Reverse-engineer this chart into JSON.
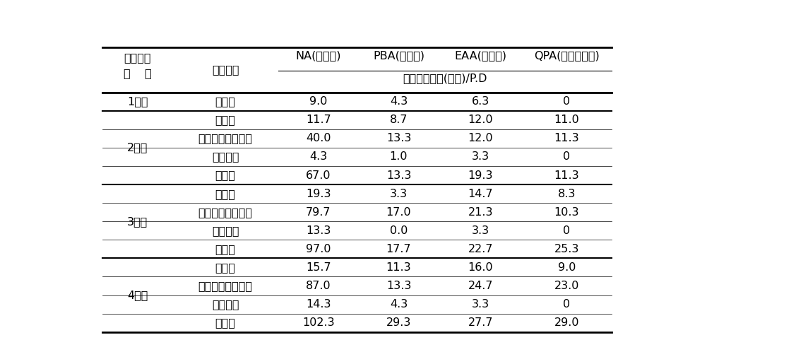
{
  "rows": [
    {
      "year": "1년차",
      "treatments": [
        {
          "method": "무처리",
          "NA": "9.0",
          "PBA": "4.3",
          "EAA": "6.3",
          "QPA": "0"
        }
      ]
    },
    {
      "year": "2년차",
      "treatments": [
        {
          "method": "페로산",
          "NA": "11.7",
          "PBA": "8.7",
          "EAA": "12.0",
          "QPA": "11.0"
        },
        {
          "method": "차아염소산나트륨",
          "NA": "40.0",
          "PBA": "13.3",
          "EAA": "12.0",
          "QPA": "11.3"
        },
        {
          "method": "밧사미드",
          "NA": "4.3",
          "PBA": "1.0",
          "EAA": "3.3",
          "QPA": "0"
        },
        {
          "method": "무처리",
          "NA": "67.0",
          "PBA": "13.3",
          "EAA": "19.3",
          "QPA": "11.3"
        }
      ]
    },
    {
      "year": "3년차",
      "treatments": [
        {
          "method": "페로산",
          "NA": "19.3",
          "PBA": "3.3",
          "EAA": "14.7",
          "QPA": "8.3"
        },
        {
          "method": "차아염소산나트륨",
          "NA": "79.7",
          "PBA": "17.0",
          "EAA": "21.3",
          "QPA": "10.3"
        },
        {
          "method": "밧사미드",
          "NA": "13.3",
          "PBA": "0.0",
          "EAA": "3.3",
          "QPA": "0"
        },
        {
          "method": "무처리",
          "NA": "97.0",
          "PBA": "17.7",
          "EAA": "22.7",
          "QPA": "25.3"
        }
      ]
    },
    {
      "year": "4년차",
      "treatments": [
        {
          "method": "페로산",
          "NA": "15.7",
          "PBA": "11.3",
          "EAA": "16.0",
          "QPA": "9.0"
        },
        {
          "method": "차아염소산나트륨",
          "NA": "87.0",
          "PBA": "13.3",
          "EAA": "24.7",
          "QPA": "23.0"
        },
        {
          "method": "밧사미드",
          "NA": "14.3",
          "PBA": "4.3",
          "EAA": "3.3",
          "QPA": "0"
        },
        {
          "method": "무처리",
          "NA": "102.3",
          "PBA": "29.3",
          "EAA": "27.7",
          "QPA": "29.0"
        }
      ]
    }
  ],
  "header_col0_line1": "배지사용",
  "header_col0_line2": "연    수",
  "header_col1": "소독방법",
  "header_col_names": [
    "NA(총세균)",
    "PBA(총진균)",
    "EAA(방선균)",
    "QPA(잿빛곰팡이)"
  ],
  "header_subtext": "콜론의집락수(개수)/P.D",
  "font_size": 11.5,
  "bg_color": "#ffffff",
  "line_color": "#000000"
}
